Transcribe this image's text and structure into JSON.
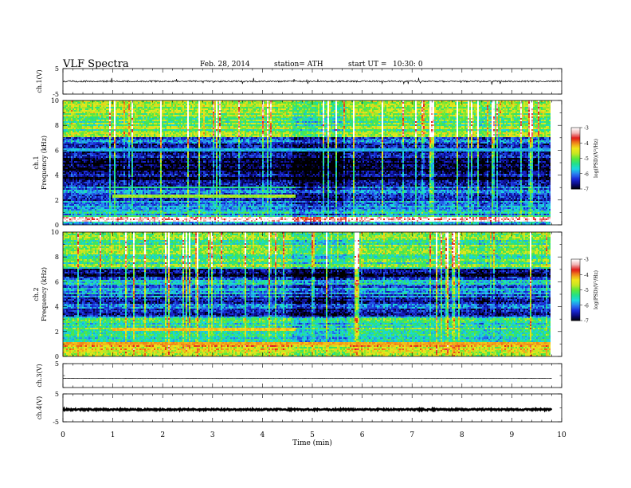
{
  "header": {
    "title": "VLF  Spectra",
    "date": "Feb. 28, 2014",
    "station": "station= ATH",
    "start_label": "start  UT  =",
    "start_time": "10:30: 0"
  },
  "colors": {
    "cmap": [
      "#000000",
      "#0a0a80",
      "#1a2ad8",
      "#2a7cf0",
      "#1ad8e0",
      "#22e08a",
      "#5ae83a",
      "#c8e622",
      "#f0e61a",
      "#f08c1a",
      "#e01a1a",
      "#f0b4b4",
      "#ffffff"
    ]
  },
  "chart_data": [
    {
      "type": "line",
      "name": "ch.1 waveform",
      "ylabel": "ch.1(V)",
      "ylim": [
        -5,
        5
      ],
      "yticks": [
        "5",
        "-5"
      ],
      "xlim": [
        0,
        10
      ],
      "baseline": 0,
      "noise_amplitude": 0.3,
      "spike_max": 1.3
    },
    {
      "type": "heatmap",
      "name": "ch.1 spectrogram",
      "ylabel_top": "ch.1",
      "ylabel": "Frequency  (kHz)",
      "ylim": [
        0,
        10
      ],
      "yticks": [
        "0",
        "2",
        "4",
        "6",
        "8",
        "10"
      ],
      "xlim": [
        0,
        9.8
      ],
      "colorbar": {
        "label": "log(PSD)(V²/Hz)",
        "range": [
          -7,
          -3
        ],
        "ticks": [
          "-3",
          "-4",
          "-5",
          "-6",
          "-7"
        ]
      },
      "bands": [
        {
          "f0": 0.0,
          "f1": 0.25,
          "level": -5.6
        },
        {
          "f0": 0.25,
          "f1": 0.6,
          "level": -3.3
        },
        {
          "f0": 0.6,
          "f1": 1.6,
          "level": -5.7
        },
        {
          "f0": 1.6,
          "f1": 3.2,
          "level": -6.1
        },
        {
          "f0": 3.2,
          "f1": 5.7,
          "level": -6.8
        },
        {
          "f0": 5.7,
          "f1": 7.0,
          "level": -6.3
        },
        {
          "f0": 7.0,
          "f1": 10.0,
          "level": -5.0
        }
      ],
      "line_features": [
        {
          "f": 2.3,
          "t0": 1.0,
          "t1": 4.65,
          "level": -4.8
        },
        {
          "f": 3.0,
          "t0": 1.0,
          "t1": 4.65,
          "level": -5.3
        },
        {
          "f": 6.0,
          "t0": 0.0,
          "t1": 9.8,
          "level": -5.8
        }
      ],
      "seed": 11
    },
    {
      "type": "heatmap",
      "name": "ch.2 spectrogram",
      "ylabel_top": "ch.2",
      "ylabel": "Frequency  (kHz)",
      "ylim": [
        0,
        10
      ],
      "yticks": [
        "0",
        "2",
        "4",
        "6",
        "8",
        "10"
      ],
      "xlim": [
        0,
        9.8
      ],
      "colorbar": {
        "label": "log(PSD)(V²/Hz)",
        "range": [
          -7,
          -3
        ],
        "ticks": [
          "-3",
          "-4",
          "-5",
          "-6",
          "-7"
        ]
      },
      "bands": [
        {
          "f0": 0.0,
          "f1": 0.25,
          "level": -4.6
        },
        {
          "f0": 0.25,
          "f1": 1.2,
          "level": -4.4
        },
        {
          "f0": 1.2,
          "f1": 3.2,
          "level": -5.3
        },
        {
          "f0": 3.2,
          "f1": 5.0,
          "level": -6.2
        },
        {
          "f0": 5.0,
          "f1": 6.3,
          "level": -5.9
        },
        {
          "f0": 6.3,
          "f1": 7.0,
          "level": -6.6
        },
        {
          "f0": 7.0,
          "f1": 10.0,
          "level": -5.1
        }
      ],
      "line_features": [
        {
          "f": 2.2,
          "t0": 1.0,
          "t1": 4.65,
          "level": -4.2
        },
        {
          "f": 1.0,
          "t0": 0.0,
          "t1": 9.8,
          "level": -4.1
        }
      ],
      "seed": 23
    },
    {
      "type": "line",
      "name": "ch.3 waveform",
      "ylabel": "ch.3(V)",
      "ylim": [
        -5,
        5
      ],
      "yticks": [
        "5"
      ],
      "xlim": [
        0,
        9.8
      ],
      "baseline": -1.2,
      "noise_amplitude": 0.04,
      "spike_max": 0
    },
    {
      "type": "line",
      "name": "ch.4 waveform",
      "ylabel": "ch.4(V)",
      "ylim": [
        -5,
        5
      ],
      "yticks": [
        "5",
        "-5"
      ],
      "xlim": [
        0,
        9.8
      ],
      "baseline": -0.6,
      "noise_amplitude": 0.25,
      "spike_max": 0
    }
  ],
  "x_axis": {
    "label": "Time  (min)",
    "range": [
      0,
      10
    ],
    "ticks": [
      "0",
      "1",
      "2",
      "3",
      "4",
      "5",
      "6",
      "7",
      "8",
      "9",
      "10"
    ]
  }
}
